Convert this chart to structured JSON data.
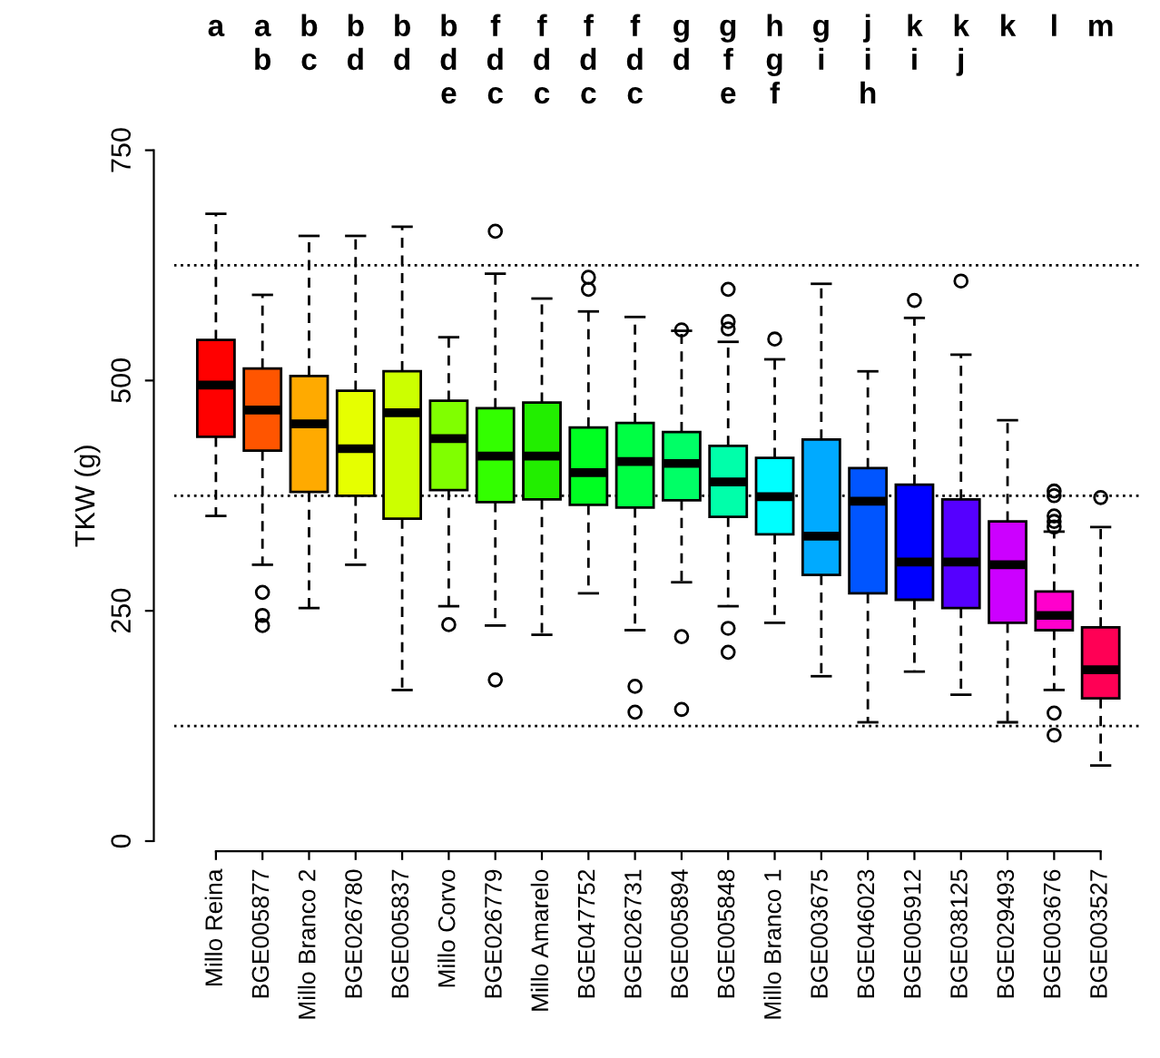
{
  "chart_data": {
    "type": "box",
    "ylabel": "TKW (g)",
    "categories": [
      "Millo Reina",
      "BGE005877",
      "Millo Branco 2",
      "BGE026780",
      "BGE005837",
      "Millo Corvo",
      "BGE026779",
      "Millo Amarelo",
      "BGE047752",
      "BGE026731",
      "BGE005894",
      "BGE005848",
      "Millo Branco 1",
      "BGE003675",
      "BGE046023",
      "BGE005912",
      "BGE038125",
      "BGE029493",
      "BGE003676",
      "BGE003527"
    ],
    "colors": [
      "#ff0000",
      "#ff5500",
      "#ffaa00",
      "#e6ff00",
      "#ccff00",
      "#80ff00",
      "#33ff00",
      "#22ee00",
      "#00ff22",
      "#00ff44",
      "#00ff66",
      "#00ffaa",
      "#00ffff",
      "#00aaff",
      "#0055ff",
      "#0000ff",
      "#5500ff",
      "#cc00ff",
      "#ff00cc",
      "#ff0055"
    ],
    "boxes": [
      {
        "low": 353,
        "q1": 439,
        "median": 495,
        "q3": 544,
        "high": 681
      },
      {
        "low": 300,
        "q1": 424,
        "median": 468,
        "q3": 513,
        "high": 593,
        "outliers": [
          270,
          245,
          234
        ]
      },
      {
        "low": 253,
        "q1": 379,
        "median": 453,
        "q3": 505,
        "high": 657
      },
      {
        "low": 300,
        "q1": 375,
        "median": 426,
        "q3": 489,
        "high": 657
      },
      {
        "low": 164,
        "q1": 350,
        "median": 465,
        "q3": 510,
        "high": 667
      },
      {
        "low": 255,
        "q1": 381,
        "median": 437,
        "q3": 478,
        "high": 547,
        "outliers": [
          235
        ]
      },
      {
        "low": 234,
        "q1": 368,
        "median": 418,
        "q3": 470,
        "high": 616,
        "outliers": [
          662,
          175
        ]
      },
      {
        "low": 224,
        "q1": 371,
        "median": 418,
        "q3": 476,
        "high": 589
      },
      {
        "low": 269,
        "q1": 365,
        "median": 400,
        "q3": 449,
        "high": 575,
        "outliers": [
          612,
          599
        ]
      },
      {
        "low": 229,
        "q1": 362,
        "median": 412,
        "q3": 454,
        "high": 569,
        "outliers": [
          168,
          140
        ]
      },
      {
        "low": 281,
        "q1": 370,
        "median": 410,
        "q3": 444,
        "high": 554,
        "outliers": [
          555,
          222,
          143
        ]
      },
      {
        "low": 255,
        "q1": 352,
        "median": 390,
        "q3": 429,
        "high": 542,
        "outliers": [
          599,
          564,
          556,
          231,
          205
        ]
      },
      {
        "low": 237,
        "q1": 333,
        "median": 374,
        "q3": 416,
        "high": 523,
        "outliers": [
          545
        ]
      },
      {
        "low": 179,
        "q1": 289,
        "median": 331,
        "q3": 436,
        "high": 605
      },
      {
        "low": 129,
        "q1": 269,
        "median": 369,
        "q3": 405,
        "high": 510
      },
      {
        "low": 184,
        "q1": 262,
        "median": 303,
        "q3": 387,
        "high": 568,
        "outliers": [
          587
        ]
      },
      {
        "low": 159,
        "q1": 253,
        "median": 303,
        "q3": 371,
        "high": 528,
        "outliers": [
          608
        ]
      },
      {
        "low": 129,
        "q1": 237,
        "median": 300,
        "q3": 347,
        "high": 457
      },
      {
        "low": 164,
        "q1": 229,
        "median": 245,
        "q3": 271,
        "high": 336,
        "outliers": [
          380,
          375,
          353,
          347,
          341,
          139,
          115
        ]
      },
      {
        "low": 82,
        "q1": 155,
        "median": 186,
        "q3": 232,
        "high": 341,
        "outliers": [
          373
        ]
      }
    ],
    "ylim": [
      0,
      750
    ],
    "yticks": [
      0,
      250,
      500,
      750
    ],
    "grid": false,
    "legend": false,
    "ref_lines": [
      {
        "axis": "y",
        "value": 625,
        "line_style": "dotted"
      },
      {
        "axis": "y",
        "value": 375,
        "line_style": "dotted"
      },
      {
        "axis": "y",
        "value": 125,
        "line_style": "dotted"
      }
    ],
    "annotations": [
      "a",
      "a\nb",
      "b\nc",
      "b\nd",
      "b\nd",
      "b\nd\ne",
      "f\nd\nc",
      "f\nd\nc",
      "f\nd\nc",
      "f\nd\nc",
      "g\nd",
      "g\nf\ne",
      "h\ng\nf",
      "g\ni",
      "j\ni\nh",
      "k\ni",
      "k\nj",
      "k",
      "l",
      "m"
    ]
  }
}
